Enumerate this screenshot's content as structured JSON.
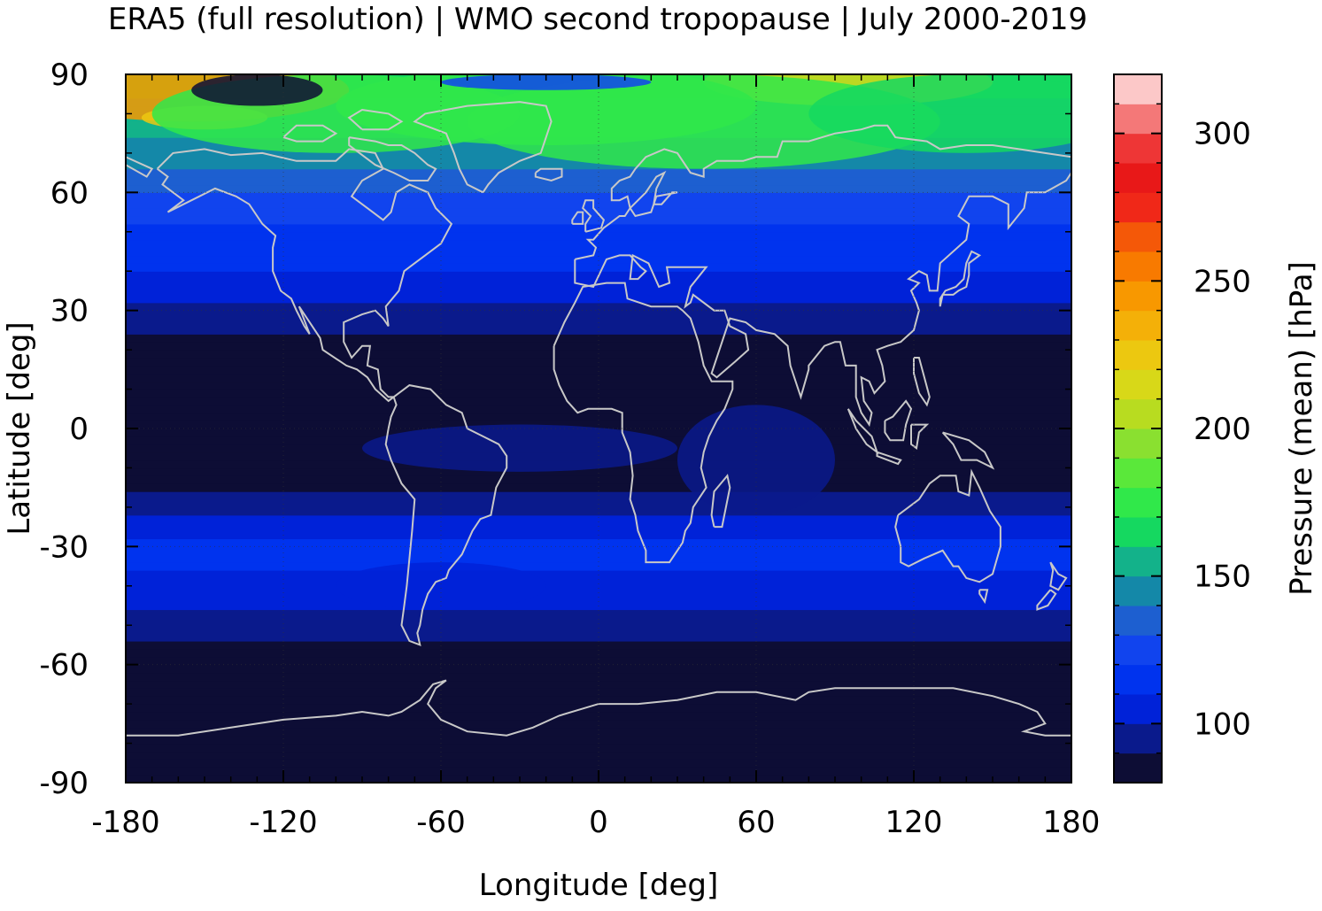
{
  "chart_data": {
    "type": "heatmap",
    "title": "ERA5 (full resolution) | WMO second tropopause | July 2000-2019",
    "xlabel": "Longitude [deg]",
    "ylabel": "Latitude [deg]",
    "xlim": [
      -180,
      180
    ],
    "ylim": [
      -90,
      90
    ],
    "x_ticks": [
      "-180",
      "-120",
      "-60",
      "0",
      "60",
      "120",
      "180"
    ],
    "y_ticks": [
      "90",
      "60",
      "30",
      "0",
      "-30",
      "-60",
      "-90"
    ],
    "grid": true,
    "coastlines": true,
    "colorbar": {
      "label": "Pressure (mean) [hPa]",
      "range": [
        80,
        320
      ],
      "ticks": [
        "100",
        "150",
        "200",
        "250",
        "300"
      ],
      "levels": 24,
      "colors": [
        "#0d0d35",
        "#0a1a8c",
        "#0022d8",
        "#0033ee",
        "#1144ee",
        "#1d5fd0",
        "#1488a8",
        "#13b28a",
        "#15d860",
        "#30e84a",
        "#5ae83a",
        "#8ae030",
        "#b8dc20",
        "#d8d818",
        "#ecc810",
        "#f4b008",
        "#f89800",
        "#f87a00",
        "#f45808",
        "#f02818",
        "#e81818",
        "#ee3636",
        "#f47878",
        "#fcc8c8"
      ]
    },
    "zonal_mean_profile": {
      "latitude": [
        -90,
        -80,
        -70,
        -60,
        -50,
        -40,
        -30,
        -20,
        -10,
        0,
        10,
        20,
        30,
        40,
        50,
        60,
        70,
        80,
        90
      ],
      "pressure_hPa": [
        82,
        82,
        85,
        86,
        92,
        108,
        112,
        95,
        84,
        82,
        84,
        86,
        98,
        110,
        118,
        130,
        145,
        158,
        162
      ]
    }
  }
}
